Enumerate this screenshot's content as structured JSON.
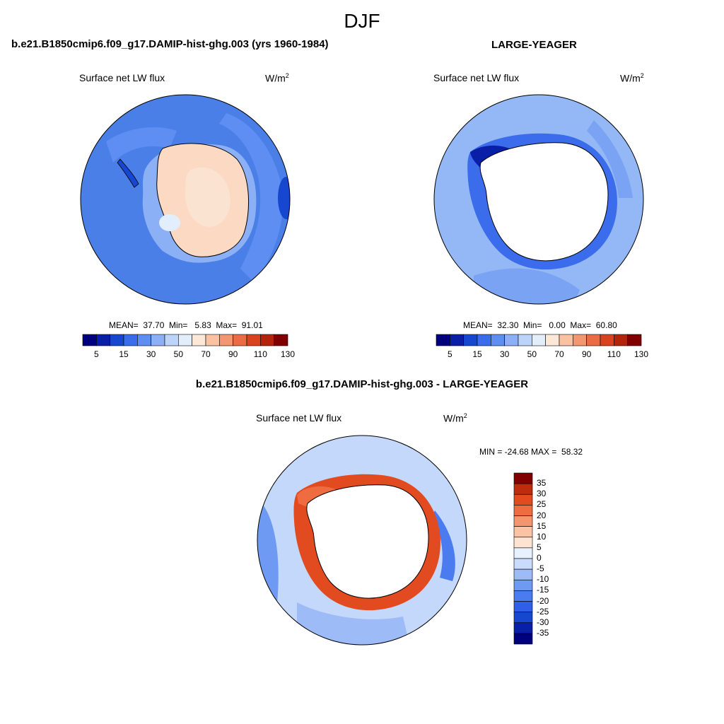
{
  "title": "DJF",
  "panels": [
    {
      "id": "model",
      "title": "b.e21.B1850cmip6.f09_g17.DAMIP-hist-ghg.003 (yrs 1960-1984)",
      "variable": "Surface net LW flux",
      "units_base": "W/m",
      "units_exp": "2",
      "stats": "MEAN=  37.70  Min=   5.83  Max=  91.01"
    },
    {
      "id": "obs",
      "title": "LARGE-YEAGER",
      "variable": "Surface net LW flux",
      "units_base": "W/m",
      "units_exp": "2",
      "stats": "MEAN=  32.30  Min=   0.00  Max=  60.80"
    },
    {
      "id": "diff",
      "title": "b.e21.B1850cmip6.f09_g17.DAMIP-hist-ghg.003 - LARGE-YEAGER",
      "variable": "Surface net LW flux",
      "units_base": "W/m",
      "units_exp": "2",
      "stats": "MIN = -24.68 MAX =  58.32"
    }
  ],
  "colors": {
    "abs_scale": [
      "#00007f",
      "#0a1fa8",
      "#1747d1",
      "#3a6cec",
      "#5e8ef2",
      "#8cb0f6",
      "#bcd3fa",
      "#e3eefd",
      "#fde8d8",
      "#f9c3a2",
      "#f29772",
      "#ea6b45",
      "#d9431f",
      "#b4230c",
      "#800000"
    ],
    "diff_scale": [
      "#00007f",
      "#0a1fa8",
      "#1747d1",
      "#2f5ee8",
      "#4a7bef",
      "#6f9af3",
      "#9dbbf7",
      "#c9dcfb",
      "#e8f1fe",
      "#fde3d2",
      "#fbc2a4",
      "#f5956f",
      "#ef6b40",
      "#e24a1f",
      "#be2b0d",
      "#800000"
    ],
    "ocean_model": "#4a7fe8",
    "land_model": "#fcd9c3",
    "ocean_obs": "#94b8f5",
    "ocean_diff": "#c3d8fa"
  },
  "chart_data": [
    {
      "type": "heatmap",
      "projection": "south-polar-stereographic",
      "title": "b.e21.B1850cmip6.f09_g17.DAMIP-hist-ghg.003 (yrs 1960-1984)",
      "variable": "Surface net LW flux",
      "units": "W/m2",
      "colorbar_orientation": "horizontal",
      "levels": [
        5,
        10,
        15,
        20,
        30,
        40,
        50,
        60,
        70,
        80,
        90,
        100,
        110,
        120,
        130
      ],
      "colorbar_tick_labels": [
        "5",
        "15",
        "30",
        "50",
        "70",
        "90",
        "110",
        "130"
      ],
      "stats": {
        "mean": 37.7,
        "min": 5.83,
        "max": 91.01
      }
    },
    {
      "type": "heatmap",
      "projection": "south-polar-stereographic",
      "title": "LARGE-YEAGER",
      "variable": "Surface net LW flux",
      "units": "W/m2",
      "colorbar_orientation": "horizontal",
      "levels": [
        5,
        10,
        15,
        20,
        30,
        40,
        50,
        60,
        70,
        80,
        90,
        100,
        110,
        120,
        130
      ],
      "colorbar_tick_labels": [
        "5",
        "15",
        "30",
        "50",
        "70",
        "90",
        "110",
        "130"
      ],
      "stats": {
        "mean": 32.3,
        "min": 0.0,
        "max": 60.8
      }
    },
    {
      "type": "heatmap",
      "projection": "south-polar-stereographic",
      "title": "b.e21.B1850cmip6.f09_g17.DAMIP-hist-ghg.003 - LARGE-YEAGER",
      "variable": "Surface net LW flux",
      "units": "W/m2",
      "colorbar_orientation": "vertical",
      "levels": [
        -35,
        -30,
        -25,
        -20,
        -15,
        -10,
        -5,
        0,
        5,
        10,
        15,
        20,
        25,
        30,
        35
      ],
      "colorbar_tick_labels": [
        "35",
        "30",
        "25",
        "20",
        "15",
        "10",
        "5",
        "0",
        "-5",
        "-10",
        "-15",
        "-20",
        "-25",
        "-30",
        "-35"
      ],
      "stats": {
        "min": -24.68,
        "max": 58.32
      }
    }
  ]
}
